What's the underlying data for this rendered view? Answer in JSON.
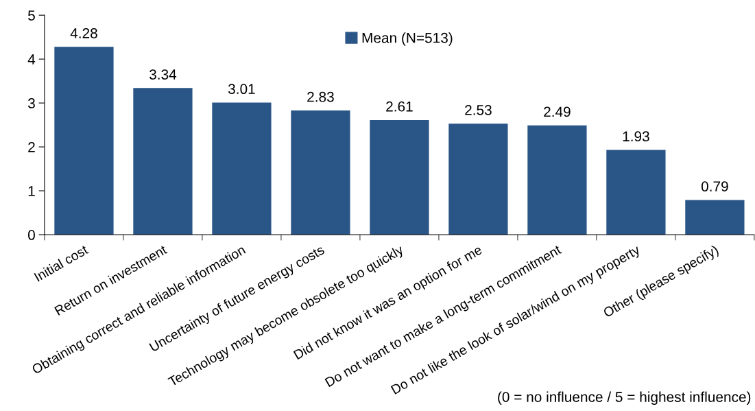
{
  "chart_data": {
    "type": "bar",
    "categories": [
      "Initial cost",
      "Return on investment",
      "Obtaining correct and reliable information",
      "Uncertainty of future energy costs",
      "Technology may become obsolete too quickly",
      "Did not know it was an option for me",
      "Do not want to make a long-term commitment",
      "Do not like the look of solar/wind on my property",
      "Other (please specify)"
    ],
    "series": [
      {
        "name": "Mean (N=513)",
        "color": "#2a5587",
        "values": [
          4.28,
          3.34,
          3.01,
          2.83,
          2.61,
          2.53,
          2.49,
          1.93,
          0.79
        ]
      }
    ],
    "ylim": [
      0,
      5
    ],
    "yticks": [
      0,
      1,
      2,
      3,
      4,
      5
    ],
    "data_labels": true,
    "legend": "top",
    "grid": false,
    "annotations": [
      "(0 = no influence / 5 = highest influence)"
    ]
  }
}
